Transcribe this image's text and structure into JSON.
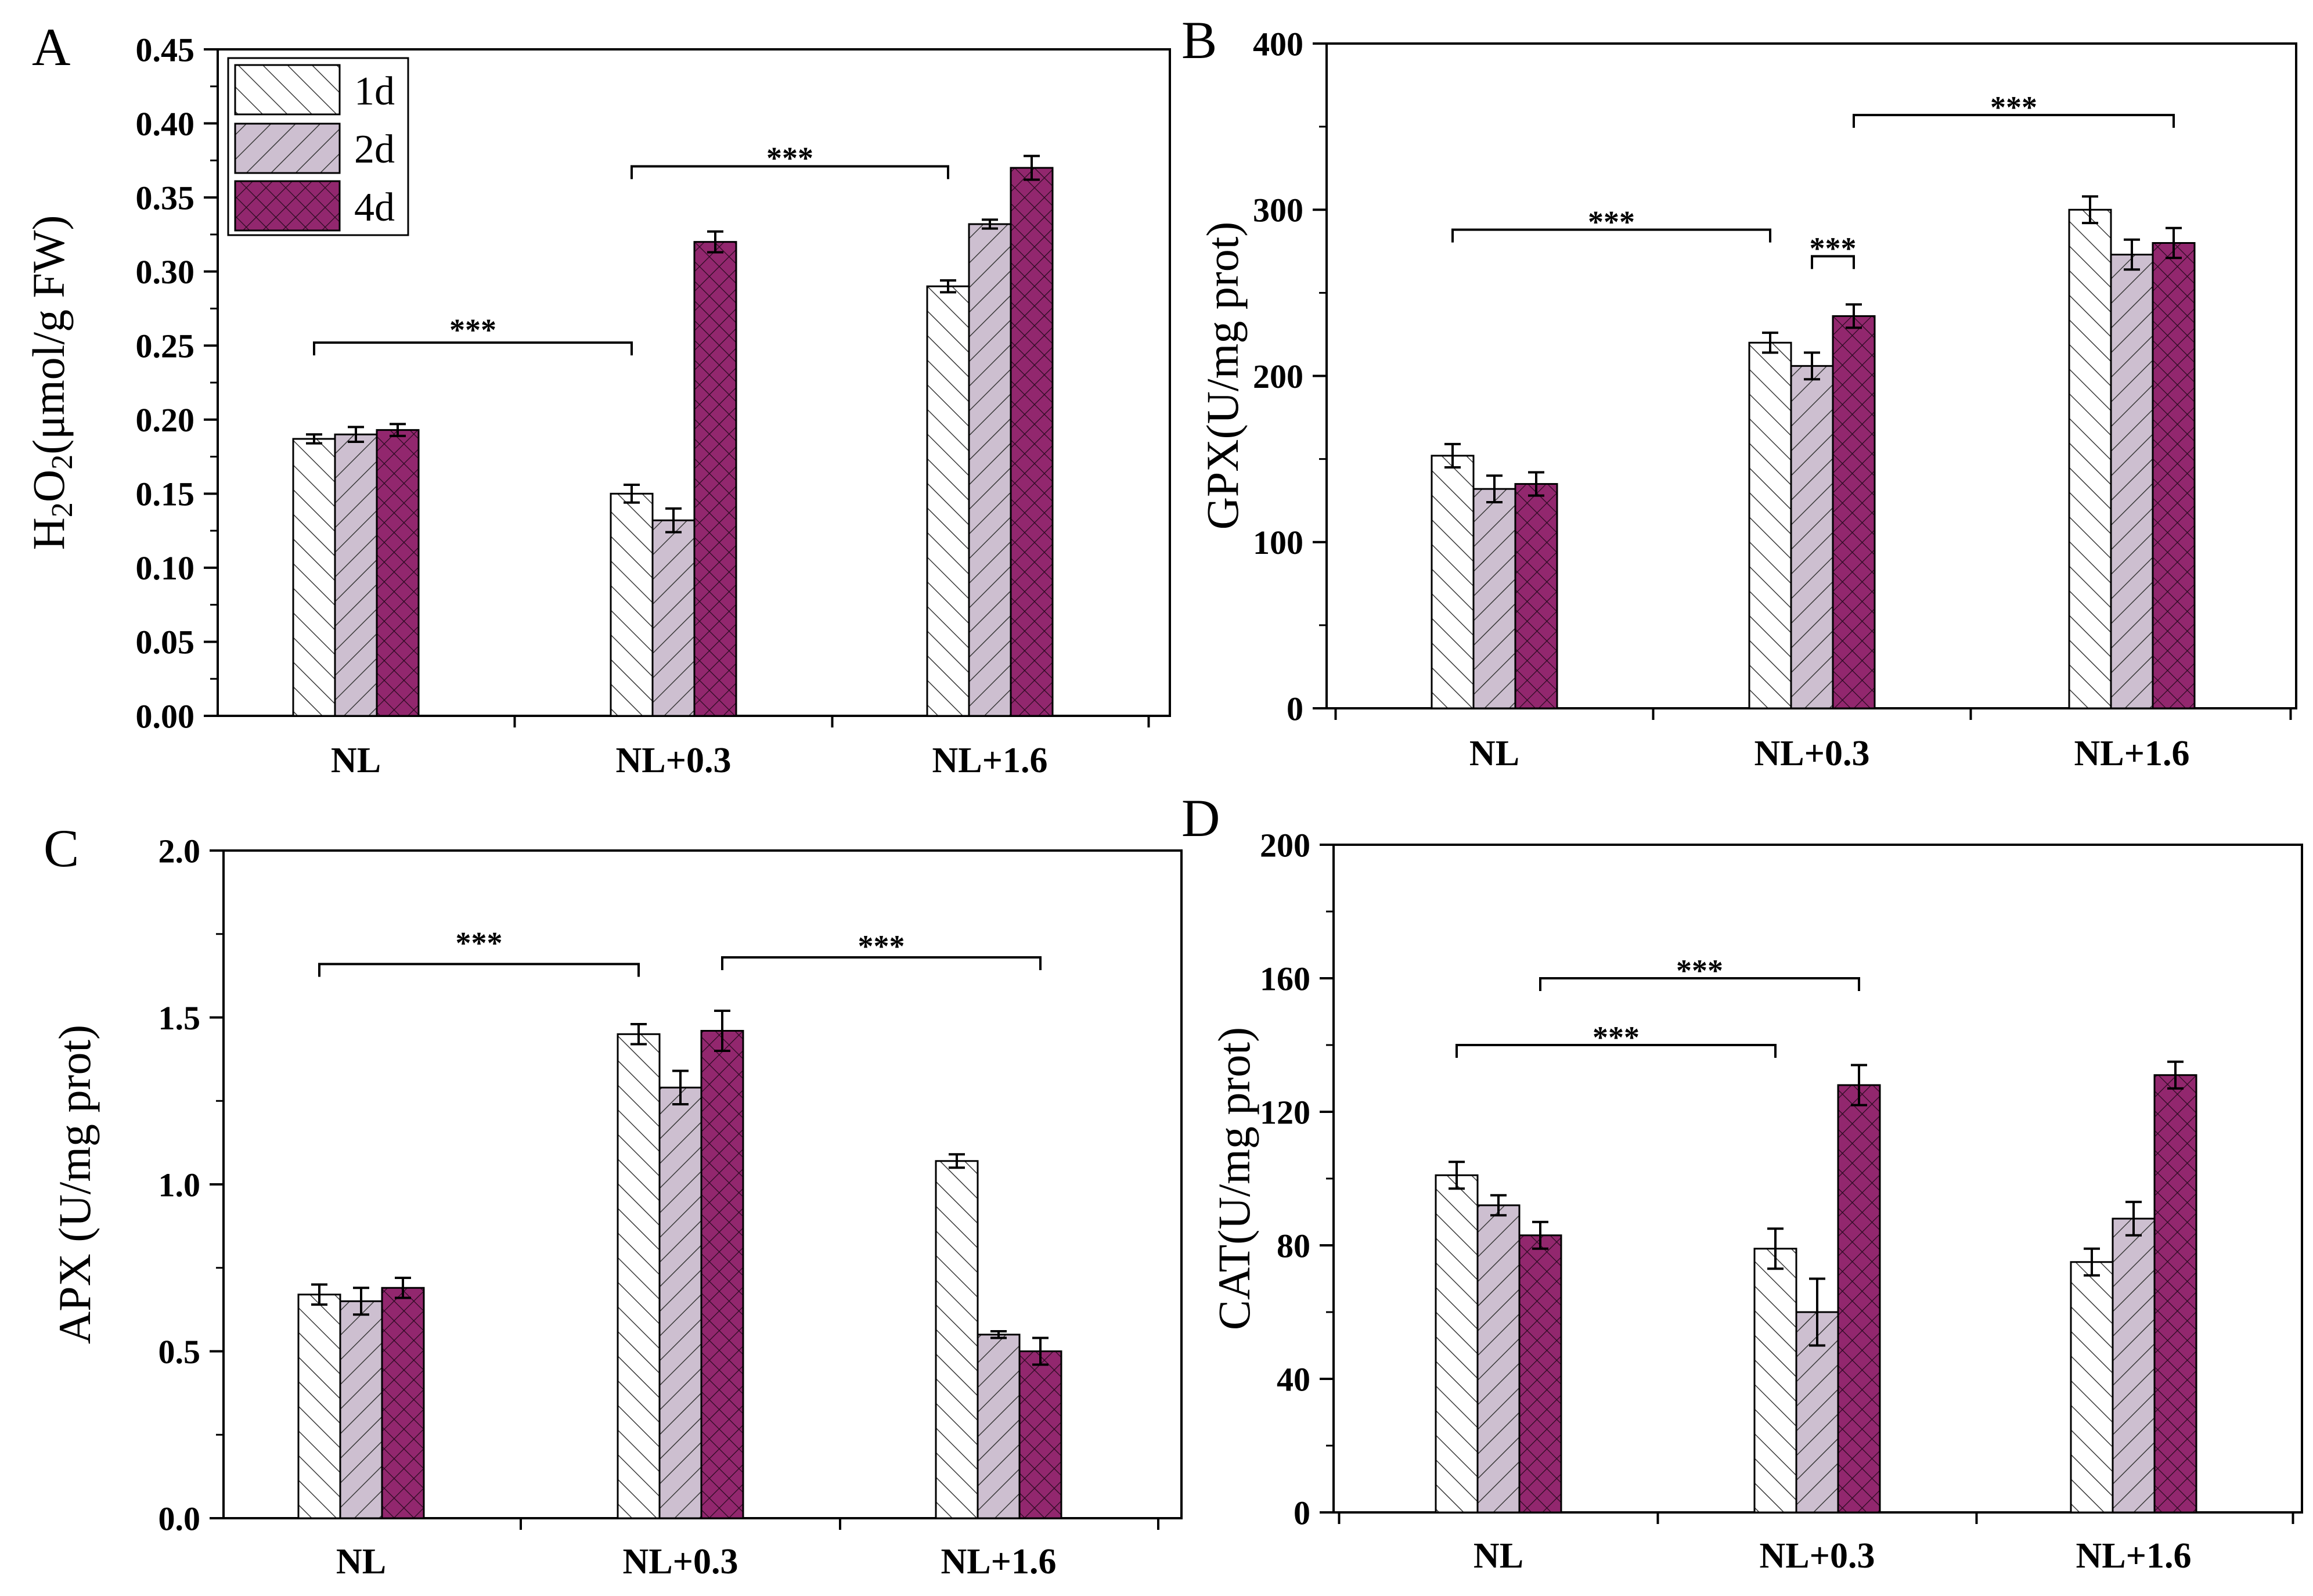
{
  "legend": {
    "entries": [
      {
        "label": "1d",
        "pattern": "diag-light"
      },
      {
        "label": "2d",
        "pattern": "diag-grey"
      },
      {
        "label": "4d",
        "pattern": "cross-magenta"
      }
    ]
  },
  "colors": {
    "series_1d": "#ffffff",
    "series_2d": "#cdbfd0",
    "series_4d": "#92276e",
    "hatch_dark": "#3a3a3a",
    "hatch_light_on_magenta": "#2a0a20"
  },
  "chart_data": [
    {
      "type": "bar",
      "panel": "A",
      "categories": [
        "NL",
        "NL+0.3",
        "NL+1.6"
      ],
      "ylabel_main": "H",
      "ylabel_sub1": "2",
      "ylabel_mid": "O",
      "ylabel_sub2": "2",
      "ylabel_rest": "(μmol/g FW)",
      "ylim": [
        0,
        0.45
      ],
      "yticks": [
        "0.00",
        "0.05",
        "0.10",
        "0.15",
        "0.20",
        "0.25",
        "0.30",
        "0.35",
        "0.40",
        "0.45"
      ],
      "series": [
        {
          "name": "1d",
          "values": [
            0.187,
            0.15,
            0.29
          ],
          "errors": [
            0.003,
            0.006,
            0.004
          ]
        },
        {
          "name": "2d",
          "values": [
            0.19,
            0.132,
            0.332
          ],
          "errors": [
            0.005,
            0.008,
            0.003
          ]
        },
        {
          "name": "4d",
          "values": [
            0.193,
            0.32,
            0.37
          ],
          "errors": [
            0.004,
            0.007,
            0.008
          ]
        }
      ],
      "annotations": [
        {
          "text": "***",
          "from": [
            0,
            0
          ],
          "to": [
            1,
            0
          ],
          "level": 0.252,
          "label_level": 0.262
        },
        {
          "text": "***",
          "from": [
            1,
            0
          ],
          "to": [
            2,
            0
          ],
          "level": 0.371,
          "label_level": 0.378
        }
      ]
    },
    {
      "type": "bar",
      "panel": "B",
      "categories": [
        "NL",
        "NL+0.3",
        "NL+1.6"
      ],
      "ylabel": "GPX(U/mg prot)",
      "ylim": [
        0,
        400
      ],
      "yticks": [
        "0",
        "100",
        "200",
        "300",
        "400"
      ],
      "series": [
        {
          "name": "1d",
          "values": [
            152,
            220,
            300
          ],
          "errors": [
            7,
            6,
            8
          ]
        },
        {
          "name": "2d",
          "values": [
            132,
            206,
            273
          ],
          "errors": [
            8,
            8,
            9
          ]
        },
        {
          "name": "4d",
          "values": [
            135,
            236,
            280
          ],
          "errors": [
            7,
            7,
            9
          ]
        }
      ],
      "annotations": [
        {
          "text": "***",
          "from": [
            0,
            0
          ],
          "to": [
            1,
            0
          ],
          "level": 288,
          "label_level": 294
        },
        {
          "text": "***",
          "from": [
            1,
            1
          ],
          "to": [
            1,
            2
          ],
          "level": 272,
          "label_level": 278
        },
        {
          "text": "***",
          "from": [
            1,
            2
          ],
          "to": [
            2,
            2
          ],
          "level": 357,
          "label_level": 363
        }
      ]
    },
    {
      "type": "bar",
      "panel": "C",
      "categories": [
        "NL",
        "NL+0.3",
        "NL+1.6"
      ],
      "ylabel": "APX (U/mg prot)",
      "ylim": [
        0,
        2.0
      ],
      "yticks": [
        "0.0",
        "0.5",
        "1.0",
        "1.5",
        "2.0"
      ],
      "series": [
        {
          "name": "1d",
          "values": [
            0.67,
            1.45,
            1.07
          ],
          "errors": [
            0.03,
            0.03,
            0.02
          ]
        },
        {
          "name": "2d",
          "values": [
            0.65,
            1.29,
            0.55
          ],
          "errors": [
            0.04,
            0.05,
            0.01
          ]
        },
        {
          "name": "4d",
          "values": [
            0.69,
            1.46,
            0.5
          ],
          "errors": [
            0.03,
            0.06,
            0.04
          ]
        }
      ],
      "annotations": [
        {
          "text": "***",
          "from": [
            0,
            0
          ],
          "to": [
            1,
            0
          ],
          "level": 1.66,
          "label_level": 1.73
        },
        {
          "text": "***",
          "from": [
            1,
            2
          ],
          "to": [
            2,
            2
          ],
          "level": 1.68,
          "label_level": 1.72
        }
      ]
    },
    {
      "type": "bar",
      "panel": "D",
      "categories": [
        "NL",
        "NL+0.3",
        "NL+1.6"
      ],
      "ylabel": "CAT(U/mg prot)",
      "ylim": [
        0,
        200
      ],
      "yticks": [
        "0",
        "40",
        "80",
        "120",
        "160",
        "200"
      ],
      "series": [
        {
          "name": "1d",
          "values": [
            101,
            79,
            75
          ],
          "errors": [
            4,
            6,
            4
          ]
        },
        {
          "name": "2d",
          "values": [
            92,
            60,
            88
          ],
          "errors": [
            3,
            10,
            5
          ]
        },
        {
          "name": "4d",
          "values": [
            83,
            128,
            131
          ],
          "errors": [
            4,
            6,
            4
          ]
        }
      ],
      "annotations": [
        {
          "text": "***",
          "from": [
            0,
            0
          ],
          "to": [
            1,
            0
          ],
          "level": 140,
          "label_level": 143
        },
        {
          "text": "***",
          "from": [
            0,
            2
          ],
          "to": [
            1,
            2
          ],
          "level": 160,
          "label_level": 163
        }
      ]
    }
  ],
  "panels": [
    {
      "letter": "A"
    },
    {
      "letter": "B"
    },
    {
      "letter": "C"
    },
    {
      "letter": "D"
    }
  ]
}
